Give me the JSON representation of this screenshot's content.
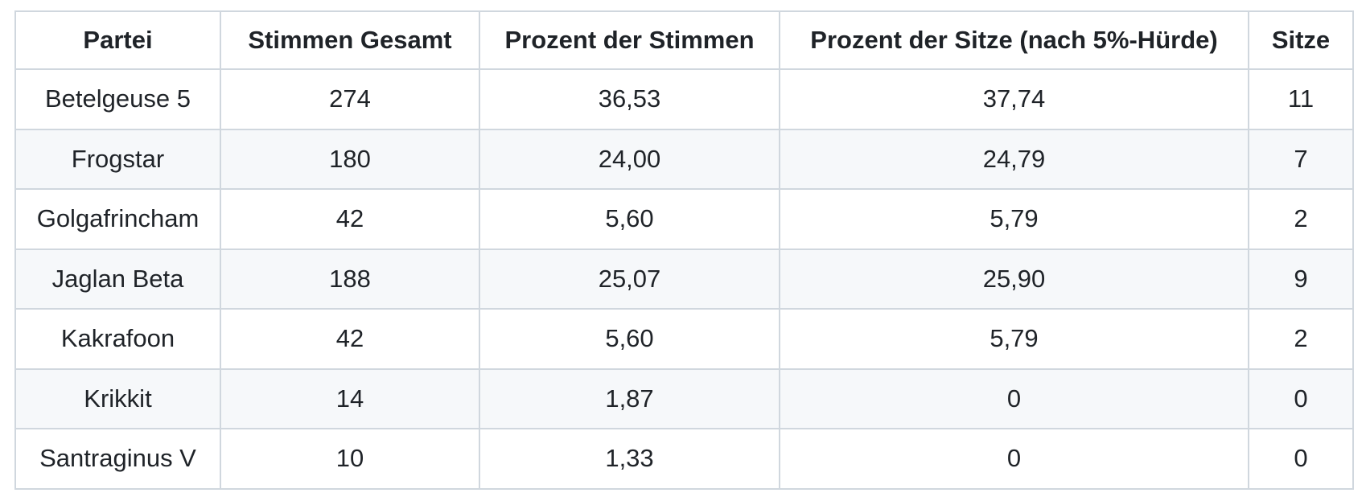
{
  "chart_data": {
    "type": "table",
    "columns": [
      "Partei",
      "Stimmen Gesamt",
      "Prozent der Stimmen",
      "Prozent der Sitze (nach 5%-Hürde)",
      "Sitze"
    ],
    "rows": [
      [
        "Betelgeuse 5",
        "274",
        "36,53",
        "37,74",
        "11"
      ],
      [
        "Frogstar",
        "180",
        "24,00",
        "24,79",
        "7"
      ],
      [
        "Golgafrincham",
        "42",
        "5,60",
        "5,79",
        "2"
      ],
      [
        "Jaglan Beta",
        "188",
        "25,07",
        "25,90",
        "9"
      ],
      [
        "Kakrafoon",
        "42",
        "5,60",
        "5,79",
        "2"
      ],
      [
        "Krikkit",
        "14",
        "1,87",
        "0",
        "0"
      ],
      [
        "Santraginus V",
        "10",
        "1,33",
        "0",
        "0"
      ]
    ],
    "layout_hints": {
      "alignment": "center",
      "zebra_striping": "even data rows shaded",
      "header_style": "bold"
    }
  },
  "style": {
    "background_color": "#ffffff",
    "text_color": "#1f2328",
    "border_color": "#d0d7de",
    "stripe_color": "#f6f8fa"
  }
}
